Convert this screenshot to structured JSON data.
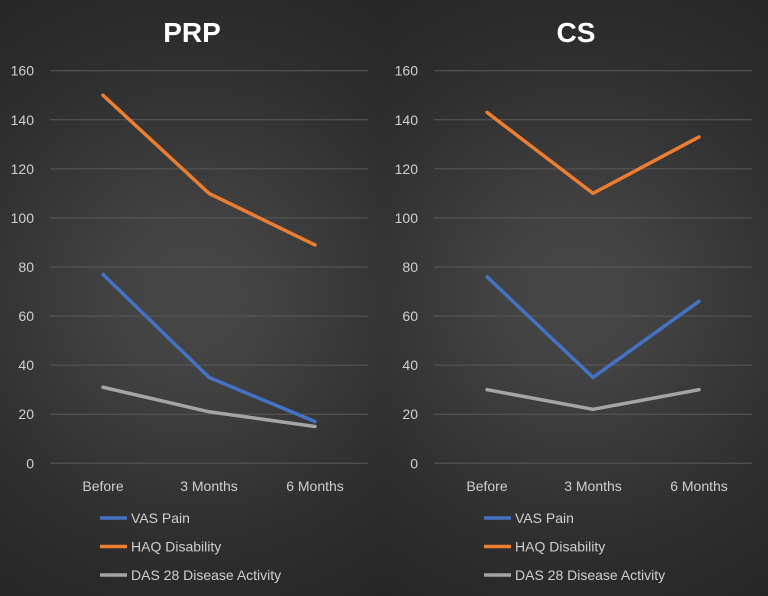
{
  "chart_data": [
    {
      "type": "line",
      "title": "PRP",
      "categories": [
        "Before",
        "3 Months",
        "6 Months"
      ],
      "ylim": [
        0,
        160
      ],
      "yticks": [
        0,
        20,
        40,
        60,
        80,
        100,
        120,
        140,
        160
      ],
      "grid": true,
      "legend": "bottom",
      "series": [
        {
          "name": "VAS Pain",
          "color": "#4472c4",
          "values": [
            77,
            35,
            17
          ]
        },
        {
          "name": "HAQ Disability",
          "color": "#ed7d31",
          "values": [
            150,
            110,
            89
          ]
        },
        {
          "name": "DAS 28 Disease Activity",
          "color": "#a5a5a5",
          "values": [
            31,
            21,
            15
          ]
        }
      ]
    },
    {
      "type": "line",
      "title": "CS",
      "categories": [
        "Before",
        "3 Months",
        "6 Months"
      ],
      "ylim": [
        0,
        160
      ],
      "yticks": [
        0,
        20,
        40,
        60,
        80,
        100,
        120,
        140,
        160
      ],
      "grid": true,
      "legend": "bottom",
      "series": [
        {
          "name": "VAS Pain",
          "color": "#4472c4",
          "values": [
            76,
            35,
            66
          ]
        },
        {
          "name": "HAQ Disability",
          "color": "#ed7d31",
          "values": [
            143,
            110,
            133
          ]
        },
        {
          "name": "DAS 28 Disease Activity",
          "color": "#a5a5a5",
          "values": [
            30,
            22,
            30
          ]
        }
      ]
    }
  ]
}
